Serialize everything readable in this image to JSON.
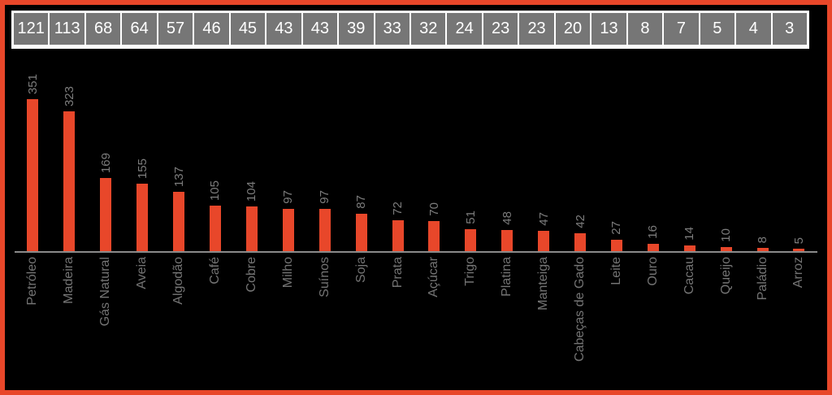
{
  "colors": {
    "accent": "#e8472a",
    "frame_border": "#e8472a",
    "background": "#000000",
    "header_cell_bg": "#767676",
    "header_text": "#ffffff",
    "header_divider": "#ffffff",
    "value_label": "#7c7c7c",
    "category_label": "#747474",
    "axis_line": "#8a8a8a"
  },
  "chart_data": {
    "type": "bar",
    "categories": [
      "Petróleo",
      "Madeira",
      "Gás Natural",
      "Aveia",
      "Algodão",
      "Café",
      "Cobre",
      "Milho",
      "Suínos",
      "Soja",
      "Prata",
      "Açúcar",
      "Trigo",
      "Platina",
      "Manteiga",
      "Cabeças de Gado",
      "Leite",
      "Ouro",
      "Cacau",
      "Queijo",
      "Paládio",
      "Arroz"
    ],
    "series": [
      {
        "name": "bar-values",
        "values": [
          351,
          323,
          169,
          155,
          137,
          105,
          104,
          97,
          97,
          87,
          72,
          70,
          51,
          48,
          47,
          42,
          27,
          16,
          14,
          10,
          8,
          5
        ]
      },
      {
        "name": "header-row-values",
        "values": [
          121,
          113,
          68,
          64,
          57,
          46,
          45,
          43,
          43,
          39,
          33,
          32,
          24,
          23,
          23,
          20,
          13,
          8,
          7,
          5,
          4,
          3
        ]
      }
    ],
    "title": "",
    "xlabel": "",
    "ylabel": "",
    "ylim": [
      0,
      351
    ],
    "grid": false,
    "legend": false,
    "bar_labels_rotated_90": true,
    "category_labels_rotated_90": true
  }
}
